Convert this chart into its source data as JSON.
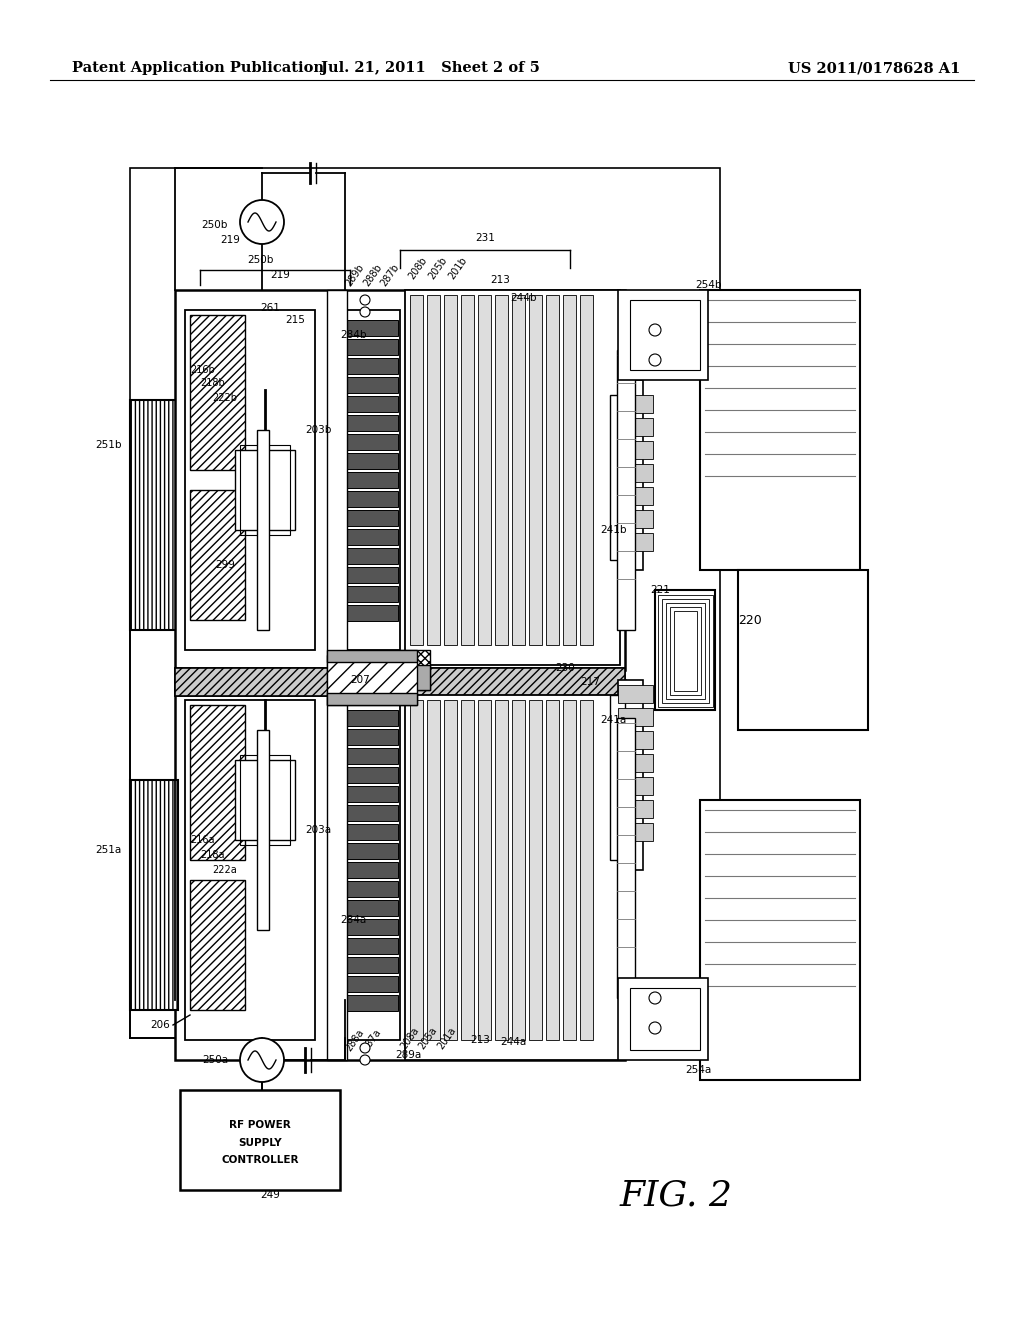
{
  "header_left": "Patent Application Publication",
  "header_center": "Jul. 21, 2011   Sheet 2 of 5",
  "header_right": "US 2011/0178628 A1",
  "fig_label": "FIG. 2",
  "bg_color": "#ffffff",
  "line_color": "#000000",
  "header_fontsize": 10.5,
  "fig_label_fontsize": 26
}
